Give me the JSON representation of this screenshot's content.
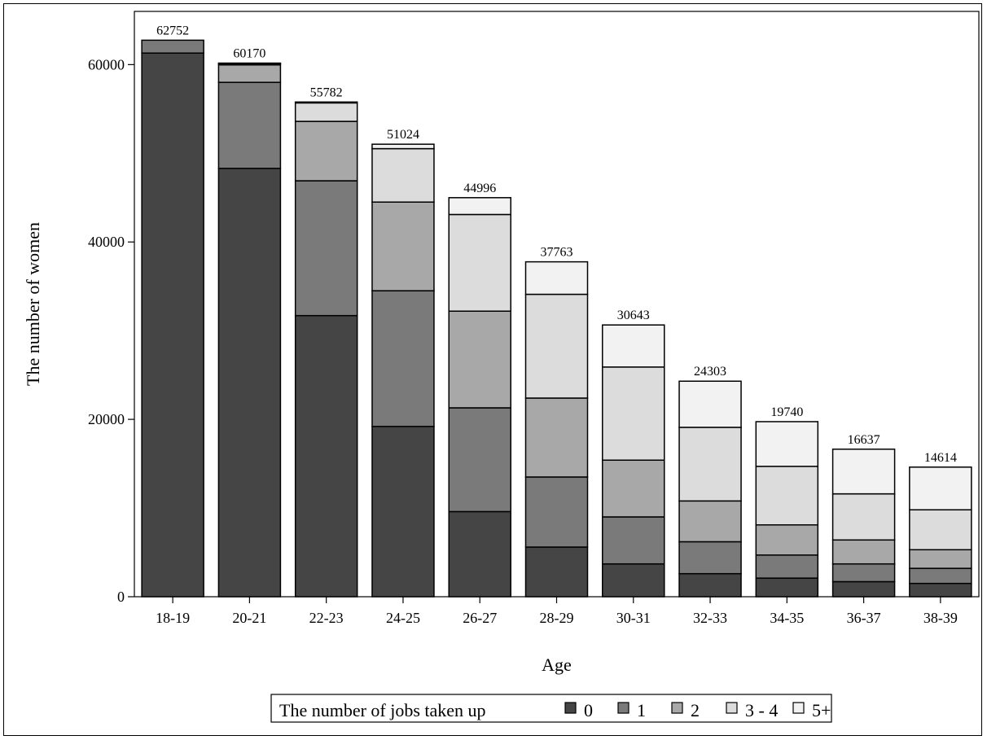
{
  "chart_data": {
    "type": "bar",
    "stacked": true,
    "categories": [
      "18-19",
      "20-21",
      "22-23",
      "24-25",
      "26-27",
      "28-29",
      "30-31",
      "32-33",
      "34-35",
      "36-37",
      "38-39"
    ],
    "totals": [
      62752,
      60170,
      55782,
      51024,
      44996,
      37763,
      30643,
      24303,
      19740,
      16637,
      14614
    ],
    "series": [
      {
        "name": "0",
        "color": "#454545",
        "values": [
          61300,
          48300,
          31700,
          19200,
          9600,
          5600,
          3700,
          2600,
          2100,
          1700,
          1500
        ]
      },
      {
        "name": "1",
        "color": "#7a7a7a",
        "values": [
          1452,
          9700,
          15200,
          15300,
          11700,
          7900,
          5300,
          3600,
          2600,
          2000,
          1700
        ]
      },
      {
        "name": "2",
        "color": "#a8a8a8",
        "values": [
          0,
          1970,
          6700,
          10000,
          10900,
          8900,
          6400,
          4600,
          3400,
          2700,
          2100
        ]
      },
      {
        "name": "3 - 4",
        "color": "#dcdcdc",
        "values": [
          0,
          150,
          2082,
          6024,
          10900,
          11700,
          10500,
          8300,
          6600,
          5200,
          4500
        ]
      },
      {
        "name": "5+",
        "color": "#f2f2f2",
        "values": [
          0,
          50,
          100,
          500,
          1896,
          3663,
          4743,
          5203,
          5040,
          5037,
          4814
        ]
      }
    ],
    "xlabel": "Age",
    "ylabel": "The number of women",
    "yticks": [
      0,
      20000,
      40000,
      60000
    ],
    "ylim": [
      0,
      66000
    ],
    "grid": false,
    "legend": {
      "title": "The number of jobs taken up",
      "position": "bottom"
    }
  }
}
